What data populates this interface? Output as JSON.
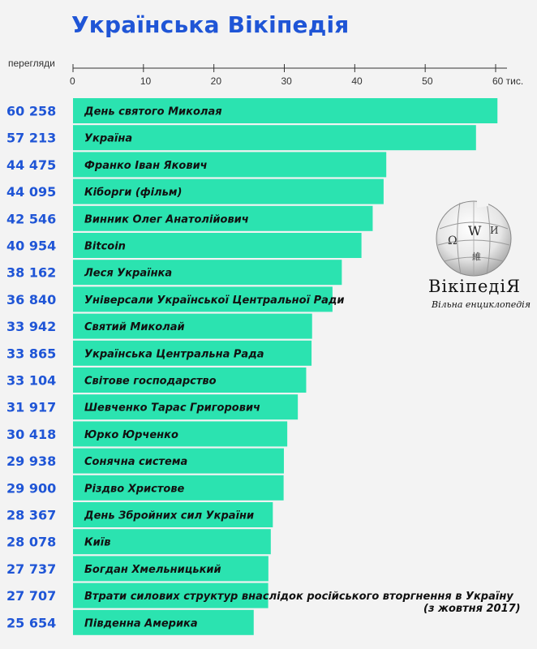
{
  "title": "Українська Вікіпедія",
  "views_label": "перегляди",
  "logo": {
    "wordmark": "ВікіпедіЯ",
    "tagline": "Вільна енциклопедія",
    "glyphs": [
      "Ω",
      "W",
      "И",
      "維"
    ]
  },
  "note": "(з жовтня 2017)",
  "colors": {
    "bar": "#2be3b0",
    "accent": "#1f55d6"
  },
  "chart_data": {
    "type": "bar",
    "orientation": "horizontal",
    "title": "Українська Вікіпедія",
    "xlabel": "",
    "ylabel": "перегляди",
    "xlim": [
      0,
      60000
    ],
    "ticks": [
      {
        "value": 0,
        "label": "0"
      },
      {
        "value": 10000,
        "label": "10"
      },
      {
        "value": 20000,
        "label": "20"
      },
      {
        "value": 30000,
        "label": "30"
      },
      {
        "value": 40000,
        "label": "40"
      },
      {
        "value": 50000,
        "label": "50"
      },
      {
        "value": 60000,
        "label": "60 тис."
      }
    ],
    "categories": [
      "День святого Миколая",
      "Україна",
      "Франко Іван Якович",
      "Кіборги (фільм)",
      "Винник Олег Анатолійович",
      "Bitcoin",
      "Леся Українка",
      "Універсали Української Центральної Ради",
      "Святий Миколай",
      "Українська Центральна Рада",
      "Світове господарство",
      " Шевченко Тарас Григорович",
      "Юрко Юрченко",
      "Сонячна система",
      "Різдво Христове",
      "День Збройних сил України",
      "Київ",
      "Богдан Хмельницький",
      "Втрати силових структур внаслідок російського вторгнення в Україну",
      "Південна Америка"
    ],
    "values": [
      60258,
      57213,
      44475,
      44095,
      42546,
      40954,
      38162,
      36840,
      33942,
      33865,
      33104,
      31917,
      30418,
      29938,
      29900,
      28367,
      28078,
      27737,
      27707,
      25654
    ],
    "value_labels": [
      "60 258",
      "57 213",
      "44 475",
      "44 095",
      "42 546",
      "40 954",
      "38 162",
      "36 840",
      "33 942",
      "33 865",
      "33 104",
      "31 917",
      "30 418",
      "29 938",
      "29 900",
      "28 367",
      "28 078",
      "27 737",
      "27 707",
      "25 654"
    ]
  }
}
